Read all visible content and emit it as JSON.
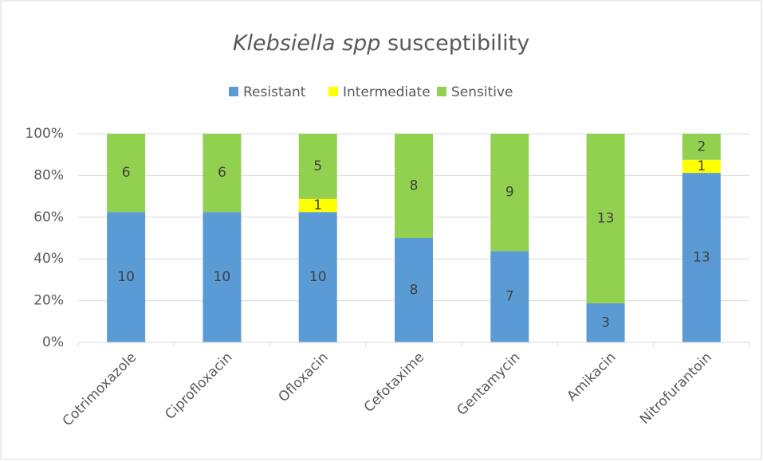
{
  "chart_data": {
    "type": "bar",
    "stacking": "percent",
    "title": {
      "italic": "Klebsiella spp",
      "text": "susceptibility"
    },
    "categories": [
      "Cotrimoxazole",
      "Ciprofloxacin",
      "Ofloxacin",
      "Cefotaxime",
      "Gentamycin",
      "Amikacin",
      "Nitrofurantoin"
    ],
    "series": [
      {
        "name": "Resistant",
        "color": "#5b9bd5",
        "values": [
          10,
          10,
          10,
          8,
          7,
          3,
          13
        ]
      },
      {
        "name": "Intermediate",
        "color": "#ffff00",
        "values": [
          0,
          0,
          1,
          0,
          0,
          0,
          1
        ]
      },
      {
        "name": "Sensitive",
        "color": "#92d050",
        "values": [
          6,
          6,
          5,
          8,
          9,
          13,
          2
        ]
      }
    ],
    "ylim": [
      0,
      100
    ],
    "yticks": [
      {
        "value": 0,
        "label": "0%"
      },
      {
        "value": 20,
        "label": "20%"
      },
      {
        "value": 40,
        "label": "40%"
      },
      {
        "value": 60,
        "label": "60%"
      },
      {
        "value": 80,
        "label": "80%"
      },
      {
        "value": 100,
        "label": "100%"
      }
    ],
    "grid": true,
    "legend": "top"
  }
}
